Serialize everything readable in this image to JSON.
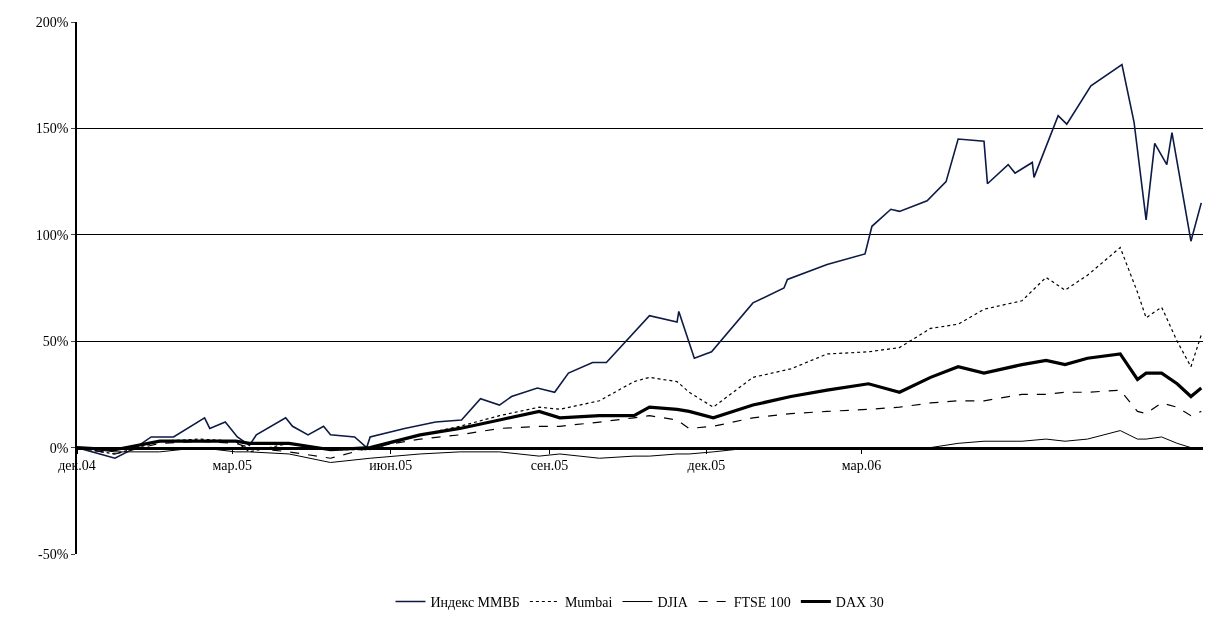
{
  "chart_data": {
    "type": "line",
    "ylim": [
      -50,
      200
    ],
    "yticks": [
      {
        "value": -50,
        "label": "-50%"
      },
      {
        "value": 0,
        "label": "0%"
      },
      {
        "value": 50,
        "label": "50%"
      },
      {
        "value": 100,
        "label": "100%"
      },
      {
        "value": 150,
        "label": "150%"
      },
      {
        "value": 200,
        "label": "200%"
      }
    ],
    "xlim": [
      "2004-12-01",
      "2006-09-15"
    ],
    "xticks": [
      {
        "value": "2004-12-01",
        "label": "дек.04"
      },
      {
        "value": "2005-03-01",
        "label": "мар.05"
      },
      {
        "value": "2005-06-01",
        "label": "июн.05"
      },
      {
        "value": "2005-09-01",
        "label": "сен.05"
      },
      {
        "value": "2005-12-01",
        "label": "дек.05"
      },
      {
        "value": "2006-03-01",
        "label": "мар.06"
      }
    ],
    "grid": "y",
    "legend": "bottom",
    "marker": "none",
    "x": [
      "2004-12-01",
      "2004-12-23",
      "2005-01-18",
      "2005-02-10",
      "2005-03-03",
      "2005-03-11",
      "2005-04-03",
      "2005-04-27",
      "2005-05-20",
      "2005-06-18",
      "2005-07-11",
      "2005-08-03",
      "2005-08-26",
      "2005-09-07",
      "2005-09-30",
      "2005-10-20",
      "2005-10-29",
      "2005-11-14",
      "2005-11-21",
      "2005-12-05",
      "2005-12-28",
      "2006-01-19",
      "2006-02-09",
      "2006-03-05",
      "2006-03-23",
      "2006-04-10",
      "2006-04-26",
      "2006-05-11",
      "2006-06-02",
      "2006-06-16",
      "2006-06-27",
      "2006-07-10",
      "2006-07-29",
      "2006-08-08",
      "2006-08-13",
      "2006-08-22",
      "2006-08-31",
      "2006-09-08",
      "2006-09-14"
    ],
    "series": [
      {
        "name": "Индекс ММВБ",
        "color": "#0d1a45",
        "line_style": "solid",
        "x": [
          "2004-12-01",
          "2004-12-23",
          "2005-01-04",
          "2005-01-13",
          "2005-01-26",
          "2005-02-13",
          "2005-02-16",
          "2005-02-25",
          "2005-03-04",
          "2005-03-11",
          "2005-03-15",
          "2005-04-01",
          "2005-04-05",
          "2005-04-14",
          "2005-04-23",
          "2005-04-27",
          "2005-05-11",
          "2005-05-18",
          "2005-05-20",
          "2005-06-09",
          "2005-06-27",
          "2005-07-12",
          "2005-07-23",
          "2005-08-03",
          "2005-08-10",
          "2005-08-25",
          "2005-09-04",
          "2005-09-12",
          "2005-09-26",
          "2005-10-04",
          "2005-10-29",
          "2005-11-14",
          "2005-11-15",
          "2005-11-24",
          "2005-12-04",
          "2005-12-28",
          "2006-01-15",
          "2006-01-17",
          "2006-02-09",
          "2006-03-03",
          "2006-03-07",
          "2006-03-18",
          "2006-03-23",
          "2006-04-08",
          "2006-04-19",
          "2006-04-26",
          "2006-05-11",
          "2006-05-13",
          "2006-05-25",
          "2006-05-29",
          "2006-06-08",
          "2006-06-09",
          "2006-06-23",
          "2006-06-28",
          "2006-07-12",
          "2006-07-30",
          "2006-08-06",
          "2006-08-13",
          "2006-08-18",
          "2006-08-25",
          "2006-08-28",
          "2006-09-08",
          "2006-09-14"
        ],
        "values": [
          0,
          -5,
          0,
          5,
          5,
          14,
          9,
          12,
          5,
          1,
          6,
          14,
          10,
          6,
          10,
          6,
          5,
          0,
          5,
          9,
          12,
          13,
          23,
          20,
          24,
          28,
          26,
          35,
          40,
          40,
          62,
          59,
          64,
          42,
          45,
          68,
          75,
          79,
          86,
          91,
          104,
          112,
          111,
          116,
          125,
          145,
          144,
          124,
          133,
          129,
          134,
          127,
          156,
          152,
          170,
          180,
          153,
          107,
          143,
          133,
          148,
          97,
          115
        ]
      },
      {
        "name": "Mumbai",
        "color": "#000000",
        "line_style": "dotted",
        "values": [
          0,
          -3,
          3,
          4,
          3,
          -2,
          2,
          -1,
          -1,
          6,
          10,
          15,
          19,
          18,
          22,
          31,
          33,
          31,
          26,
          19,
          33,
          37,
          44,
          45,
          47,
          56,
          58,
          65,
          69,
          80,
          74,
          81,
          94,
          73,
          61,
          66,
          50,
          38,
          53
        ]
      },
      {
        "name": "DJIA",
        "color": "#000000",
        "line_style": "solid",
        "values": [
          0,
          -2,
          -2,
          0,
          -2,
          -2,
          -3,
          -7,
          -5,
          -3,
          -2,
          -2,
          -4,
          -3,
          -5,
          -4,
          -4,
          -3,
          -3,
          -2,
          0,
          0,
          0,
          0,
          0,
          0,
          2,
          3,
          3,
          4,
          3,
          4,
          8,
          4,
          4,
          5,
          2,
          0,
          0
        ]
      },
      {
        "name": "FTSE 100",
        "color": "#000000",
        "line_style": "dashed",
        "values": [
          0,
          -3,
          2,
          3,
          2,
          0,
          -2,
          -5,
          0,
          4,
          6,
          9,
          10,
          10,
          12,
          14,
          15,
          13,
          9,
          10,
          14,
          16,
          17,
          18,
          19,
          21,
          22,
          22,
          25,
          25,
          26,
          26,
          27,
          17,
          16,
          21,
          19,
          15,
          17
        ]
      },
      {
        "name": "DAX 30",
        "color": "#000000",
        "line_style": "solid",
        "values": [
          0,
          -1,
          3,
          3,
          3,
          2,
          2,
          -1,
          0,
          6,
          9,
          13,
          17,
          14,
          15,
          15,
          19,
          18,
          17,
          14,
          20,
          24,
          27,
          30,
          26,
          33,
          38,
          35,
          39,
          41,
          39,
          42,
          44,
          32,
          35,
          35,
          30,
          24,
          28
        ]
      }
    ]
  }
}
